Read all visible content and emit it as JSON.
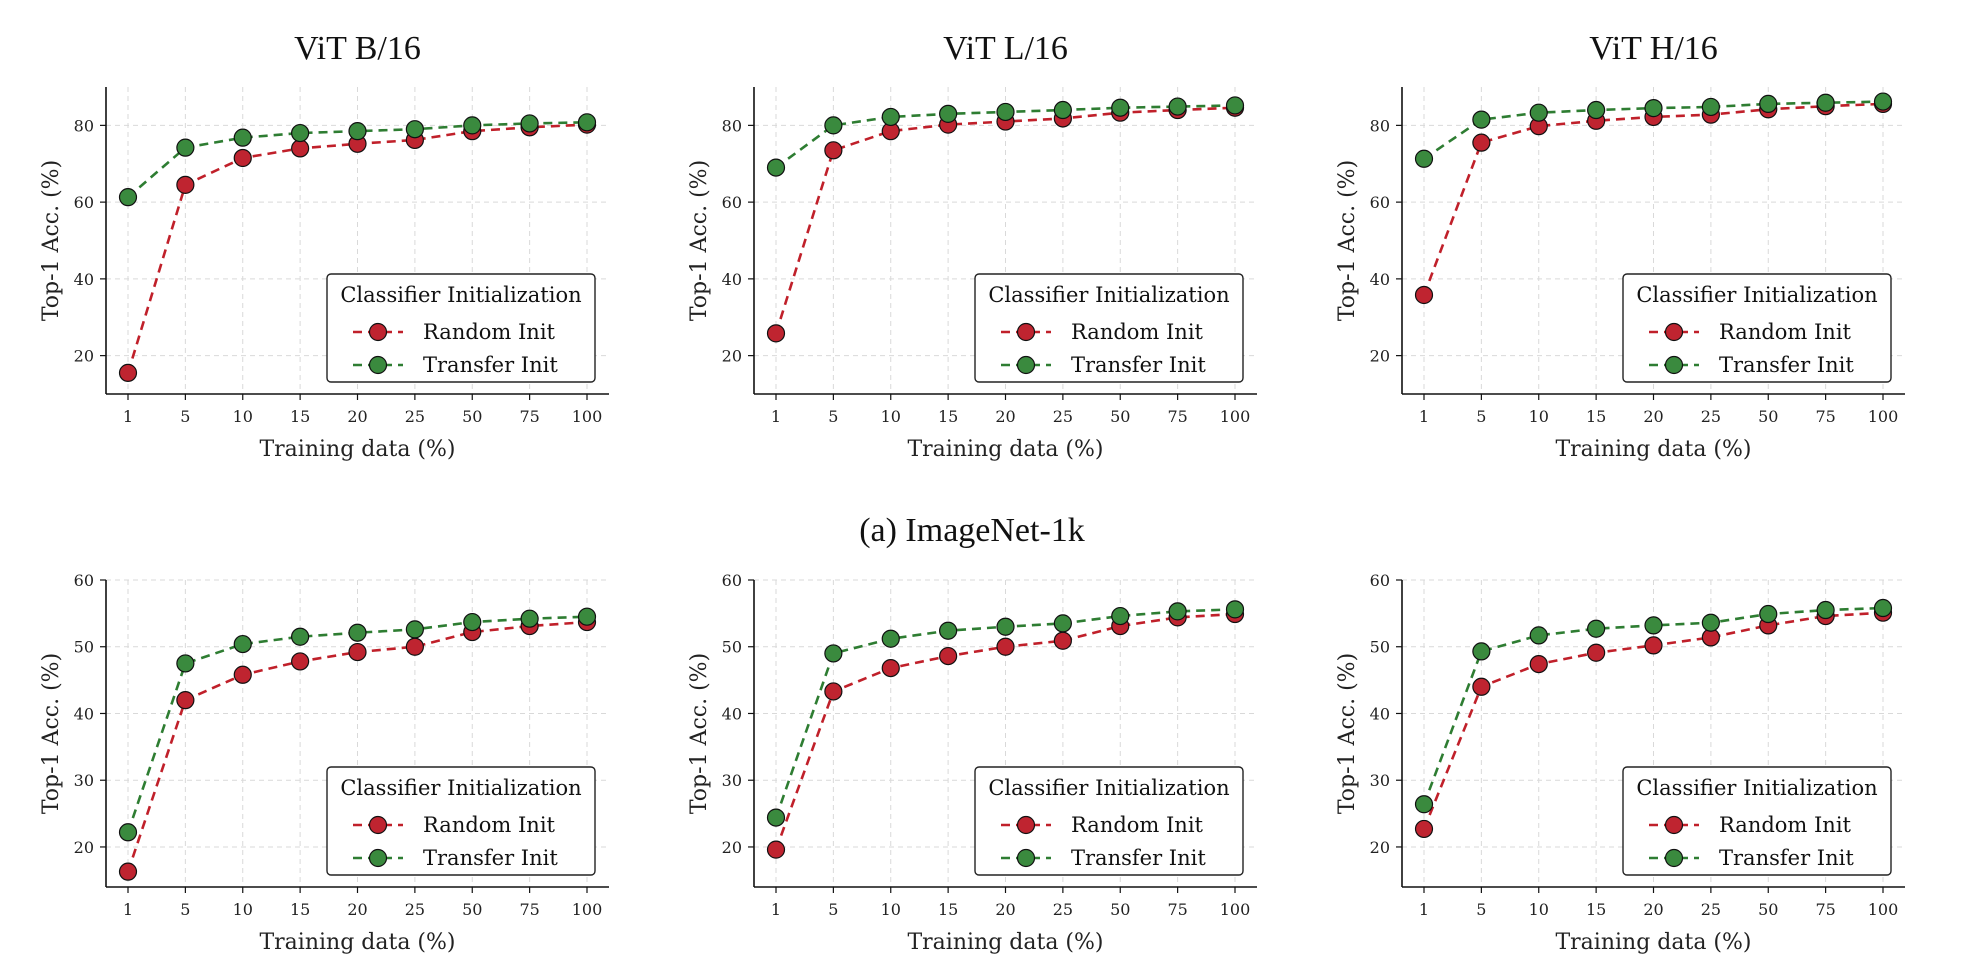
{
  "figure": {
    "caption_row1": "(a) ImageNet-1k"
  },
  "colors": {
    "random": "#c0202a",
    "transfer": "#2e7d32",
    "random_fill": "#bf2430",
    "transfer_fill": "#3a8a3e"
  },
  "chart_data": [
    {
      "type": "line",
      "title": "ViT B/16",
      "xlabel": "Training data (%)",
      "ylabel": "Top-1 Acc. (%)",
      "categories": [
        "1",
        "5",
        "10",
        "15",
        "20",
        "25",
        "50",
        "75",
        "100"
      ],
      "ylim": [
        10,
        90
      ],
      "yticks": [
        20,
        40,
        60,
        80
      ],
      "grid": true,
      "legend": {
        "title": "Classifier Initialization",
        "placement": "lower-right"
      },
      "series": [
        {
          "name": "Random Init",
          "values": [
            15.5,
            64.5,
            71.5,
            74.0,
            75.2,
            76.2,
            78.5,
            79.5,
            80.2
          ]
        },
        {
          "name": "Transfer Init",
          "values": [
            61.3,
            74.2,
            76.8,
            78.0,
            78.5,
            79.0,
            80.0,
            80.5,
            80.8
          ]
        }
      ]
    },
    {
      "type": "line",
      "title": "ViT L/16",
      "xlabel": "Training data (%)",
      "ylabel": "Top-1 Acc. (%)",
      "categories": [
        "1",
        "5",
        "10",
        "15",
        "20",
        "25",
        "50",
        "75",
        "100"
      ],
      "ylim": [
        10,
        90
      ],
      "yticks": [
        20,
        40,
        60,
        80
      ],
      "grid": true,
      "legend": {
        "title": "Classifier Initialization",
        "placement": "lower-right"
      },
      "series": [
        {
          "name": "Random Init",
          "values": [
            25.8,
            73.5,
            78.5,
            80.2,
            81.0,
            81.8,
            83.3,
            84.0,
            84.6
          ]
        },
        {
          "name": "Transfer Init",
          "values": [
            69.0,
            80.0,
            82.2,
            83.0,
            83.5,
            84.0,
            84.6,
            84.9,
            85.2
          ]
        }
      ]
    },
    {
      "type": "line",
      "title": "ViT H/16",
      "xlabel": "Training data (%)",
      "ylabel": "Top-1 Acc. (%)",
      "categories": [
        "1",
        "5",
        "10",
        "15",
        "20",
        "25",
        "50",
        "75",
        "100"
      ],
      "ylim": [
        10,
        90
      ],
      "yticks": [
        20,
        40,
        60,
        80
      ],
      "grid": true,
      "legend": {
        "title": "Classifier Initialization",
        "placement": "lower-right"
      },
      "series": [
        {
          "name": "Random Init",
          "values": [
            35.8,
            75.5,
            79.8,
            81.2,
            82.2,
            82.8,
            84.2,
            85.0,
            85.6
          ]
        },
        {
          "name": "Transfer Init",
          "values": [
            71.3,
            81.5,
            83.3,
            84.0,
            84.5,
            84.8,
            85.6,
            85.9,
            86.2
          ]
        }
      ]
    },
    {
      "type": "line",
      "title": "",
      "xlabel": "Training data (%)",
      "ylabel": "Top-1 Acc. (%)",
      "categories": [
        "1",
        "5",
        "10",
        "15",
        "20",
        "25",
        "50",
        "75",
        "100"
      ],
      "ylim": [
        14,
        60
      ],
      "yticks": [
        20,
        30,
        40,
        50,
        60
      ],
      "grid": true,
      "legend": {
        "title": "Classifier Initialization",
        "placement": "lower-right"
      },
      "series": [
        {
          "name": "Random Init",
          "values": [
            16.3,
            42.0,
            45.8,
            47.8,
            49.2,
            50.0,
            52.2,
            53.1,
            53.7
          ]
        },
        {
          "name": "Transfer Init",
          "values": [
            22.2,
            47.5,
            50.4,
            51.5,
            52.1,
            52.6,
            53.7,
            54.2,
            54.5
          ]
        }
      ]
    },
    {
      "type": "line",
      "title": "",
      "xlabel": "Training data (%)",
      "ylabel": "Top-1 Acc. (%)",
      "categories": [
        "1",
        "5",
        "10",
        "15",
        "20",
        "25",
        "50",
        "75",
        "100"
      ],
      "ylim": [
        14,
        60
      ],
      "yticks": [
        20,
        30,
        40,
        50,
        60
      ],
      "grid": true,
      "legend": {
        "title": "Classifier Initialization",
        "placement": "lower-right"
      },
      "series": [
        {
          "name": "Random Init",
          "values": [
            19.6,
            43.3,
            46.8,
            48.6,
            50.0,
            50.9,
            53.1,
            54.4,
            54.9
          ]
        },
        {
          "name": "Transfer Init",
          "values": [
            24.4,
            49.0,
            51.2,
            52.4,
            53.0,
            53.5,
            54.6,
            55.3,
            55.6
          ]
        }
      ]
    },
    {
      "type": "line",
      "title": "",
      "xlabel": "Training data (%)",
      "ylabel": "Top-1 Acc. (%)",
      "categories": [
        "1",
        "5",
        "10",
        "15",
        "20",
        "25",
        "50",
        "75",
        "100"
      ],
      "ylim": [
        14,
        60
      ],
      "yticks": [
        20,
        30,
        40,
        50,
        60
      ],
      "grid": true,
      "legend": {
        "title": "Classifier Initialization",
        "placement": "lower-right"
      },
      "series": [
        {
          "name": "Random Init",
          "values": [
            22.7,
            44.0,
            47.4,
            49.1,
            50.2,
            51.4,
            53.2,
            54.6,
            55.1
          ]
        },
        {
          "name": "Transfer Init",
          "values": [
            26.4,
            49.3,
            51.7,
            52.7,
            53.2,
            53.6,
            54.9,
            55.5,
            55.8
          ]
        }
      ]
    }
  ]
}
